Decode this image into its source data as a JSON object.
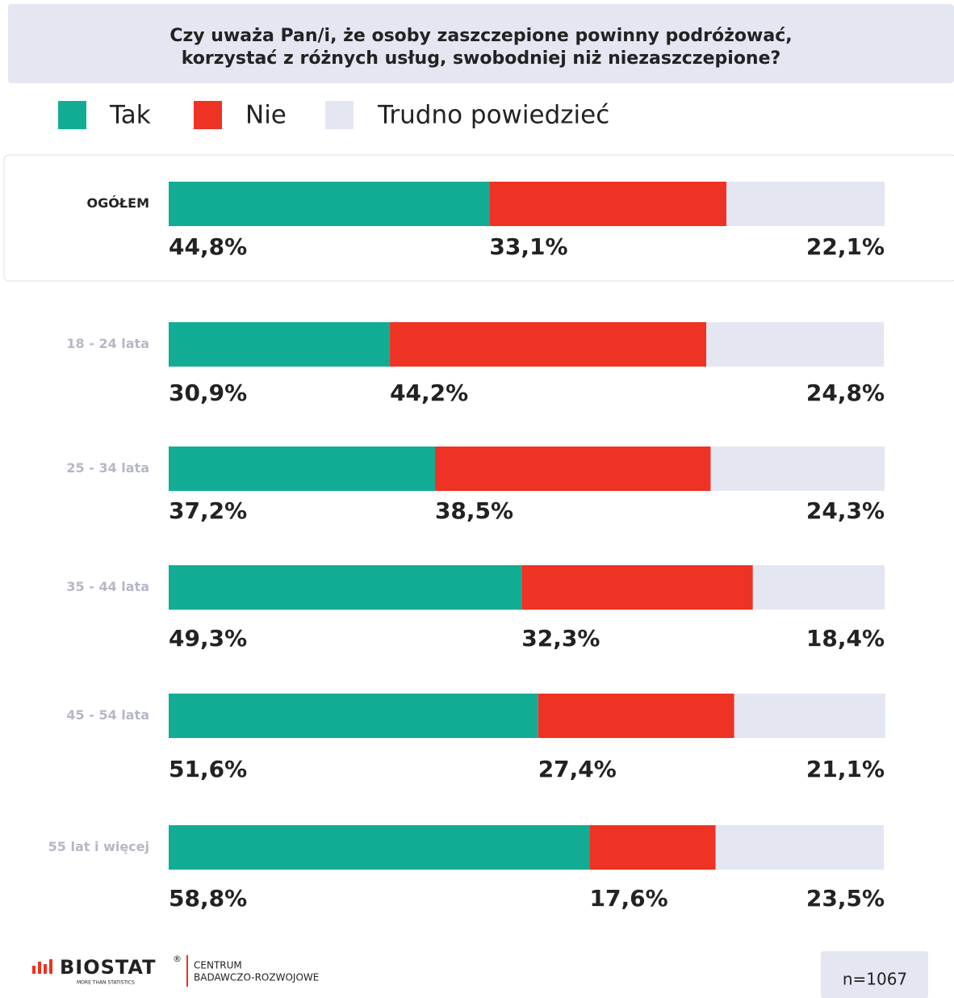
{
  "chart_data": {
    "type": "stacked_bar_horizontal",
    "title_lines": [
      "Czy uważa Pan/i, że osoby zaszczepione powinny podróżować,",
      "korzystać z różnych usług, swobodniej niż niezaszczepione?"
    ],
    "categories": [
      "OGÓŁEM",
      "18 - 24 lata",
      "25 - 34 lata",
      "35 - 44 lata",
      "45 - 54 lata",
      "55 lat i więcej"
    ],
    "xlim": [
      0,
      100
    ],
    "series": [
      {
        "name": "Tak",
        "color": "#12ac94",
        "values": [
          44.8,
          30.9,
          37.2,
          49.3,
          51.6,
          58.8
        ],
        "value_labels": [
          "44,8%",
          "30,9%",
          "37,2%",
          "49,3%",
          "51,6%",
          "58,8%"
        ]
      },
      {
        "name": "Nie",
        "color": "#ee3224",
        "values": [
          33.1,
          44.2,
          38.5,
          32.3,
          27.4,
          17.6
        ],
        "value_labels": [
          "33,1%",
          "44,2%",
          "38,5%",
          "32,3%",
          "27,4%",
          "17,6%"
        ]
      },
      {
        "name": "Trudno powiedzieć",
        "color": "#e4e6f2",
        "values": [
          22.1,
          24.8,
          24.3,
          18.4,
          21.1,
          23.5
        ],
        "value_labels": [
          "22,1%",
          "24,8%",
          "24,3%",
          "18,4%",
          "21,1%",
          "23,5%"
        ]
      }
    ],
    "sample": "n=1067"
  },
  "footer": {
    "brand": "BIOSTAT",
    "brand_tagline": "MORE THAN STATISTICS",
    "registered": "®",
    "unit_lines": [
      "CENTRUM",
      "BADAWCZO-ROZWOJOWE"
    ]
  }
}
